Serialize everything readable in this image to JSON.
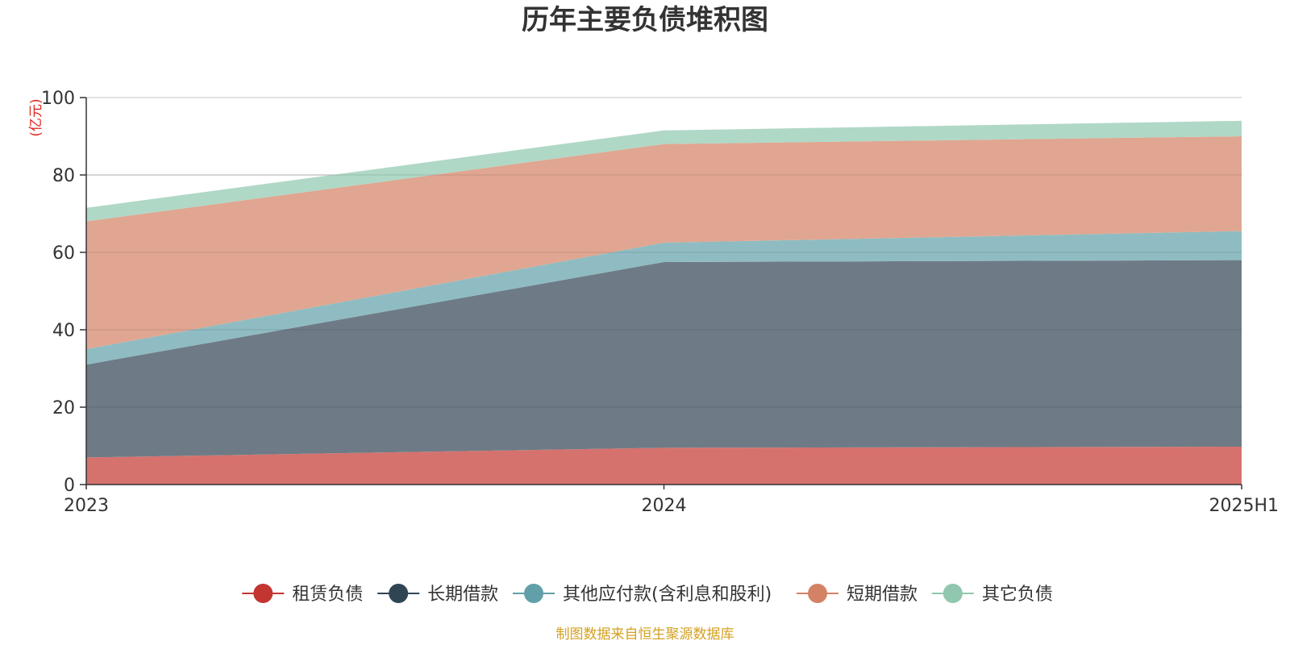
{
  "chart_data": {
    "type": "area",
    "stacked": true,
    "title": "历年主要负债堆积图",
    "unit": "(亿元)",
    "x": [
      "2023",
      "2024",
      "2025H1"
    ],
    "ylim": [
      0,
      100
    ],
    "yticks": [
      0,
      20,
      40,
      60,
      80,
      100
    ],
    "grid": true,
    "legend_position": "bottom",
    "series": [
      {
        "name": "租赁负债",
        "values": [
          7.0,
          9.5,
          9.8
        ],
        "color": "#c23531",
        "fill": "#d5726e"
      },
      {
        "name": "长期借款",
        "values": [
          24.0,
          48.0,
          48.2
        ],
        "color": "#2f4554",
        "fill": "#6e7b86"
      },
      {
        "name": "其他应付款(含利息和股利)",
        "values": [
          4.0,
          5.0,
          7.5
        ],
        "color": "#61a0a8",
        "fill": "#8fbcc2"
      },
      {
        "name": "短期借款",
        "values": [
          33.0,
          25.5,
          24.5
        ],
        "color": "#d48265",
        "fill": "#e0a691"
      },
      {
        "name": "其它负债",
        "values": [
          3.5,
          3.5,
          4.0
        ],
        "color": "#91c7ae",
        "fill": "#b0d8c6"
      }
    ]
  },
  "footer": {
    "source": "制图数据来自恒生聚源数据库"
  }
}
